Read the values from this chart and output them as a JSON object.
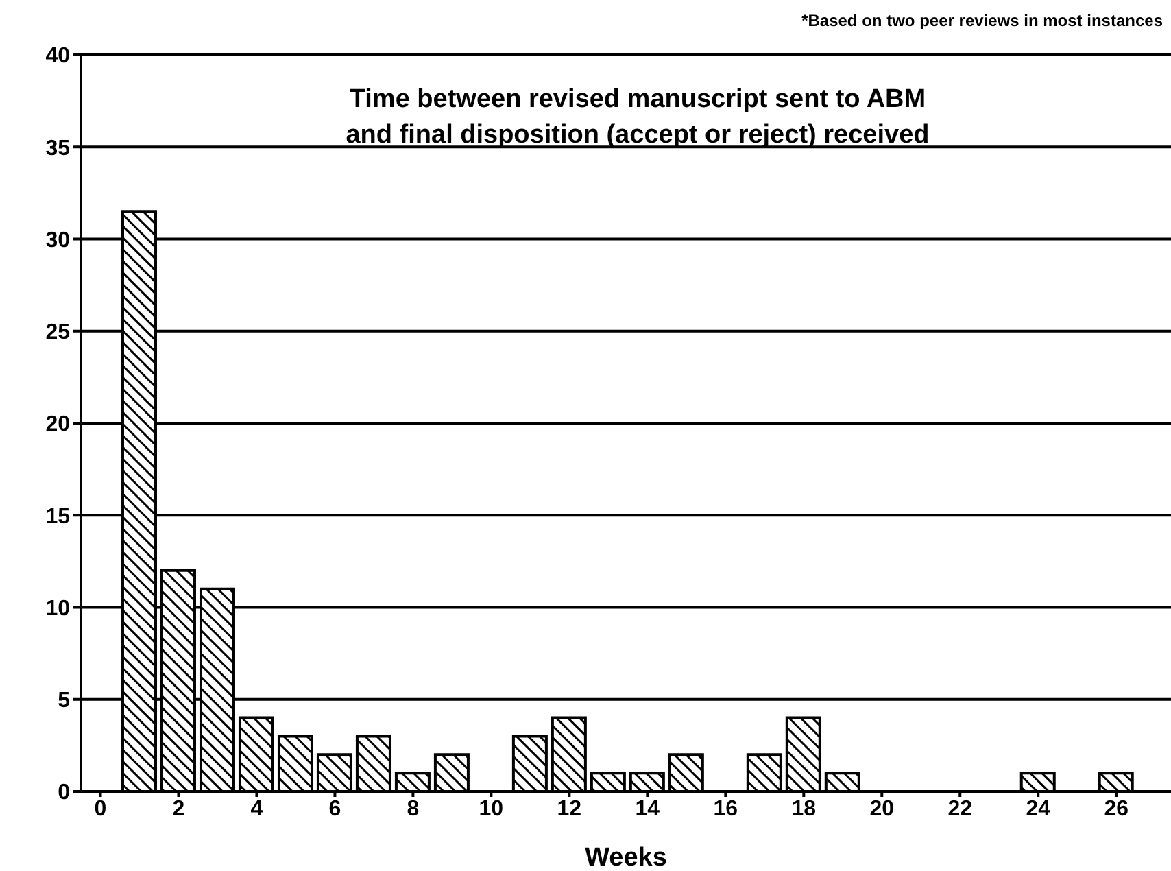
{
  "chart_data": {
    "type": "bar",
    "title": "Time between revised manuscript sent to ABM\nand final disposition (accept or reject) received",
    "xlabel": "Weeks",
    "annotations": [
      "*Based on two peer reviews in most instances"
    ],
    "x": [
      1,
      2,
      3,
      4,
      5,
      6,
      7,
      8,
      9,
      10,
      11,
      12,
      13,
      14,
      15,
      16,
      17,
      18,
      19,
      20,
      21,
      22,
      23,
      24,
      25,
      26
    ],
    "values": [
      31.5,
      12,
      11,
      4,
      3,
      2,
      3,
      1,
      2,
      0,
      3,
      4,
      1,
      1,
      2,
      0,
      2,
      4,
      1,
      0,
      0,
      0,
      0,
      1,
      0,
      1
    ],
    "color": "#000000",
    "xlim": [
      -0.5,
      27.4
    ],
    "xticks": [
      0,
      2,
      4,
      6,
      8,
      10,
      12,
      14,
      16,
      18,
      20,
      22,
      24,
      26
    ],
    "ylim": [
      0,
      40
    ],
    "yticks": [
      0,
      5,
      10,
      15,
      20,
      25,
      30,
      35,
      40
    ],
    "grid": "y"
  }
}
